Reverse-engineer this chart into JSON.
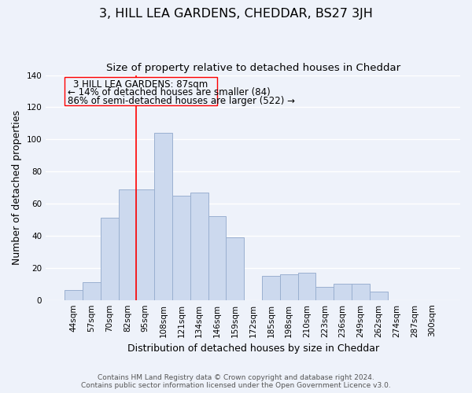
{
  "title": "3, HILL LEA GARDENS, CHEDDAR, BS27 3JH",
  "subtitle": "Size of property relative to detached houses in Cheddar",
  "xlabel": "Distribution of detached houses by size in Cheddar",
  "ylabel": "Number of detached properties",
  "bar_color": "#ccd9ee",
  "bar_edge_color": "#9ab0d0",
  "categories": [
    "44sqm",
    "57sqm",
    "70sqm",
    "82sqm",
    "95sqm",
    "108sqm",
    "121sqm",
    "134sqm",
    "146sqm",
    "159sqm",
    "172sqm",
    "185sqm",
    "198sqm",
    "210sqm",
    "223sqm",
    "236sqm",
    "249sqm",
    "262sqm",
    "274sqm",
    "287sqm",
    "300sqm"
  ],
  "values": [
    6,
    11,
    51,
    69,
    69,
    104,
    65,
    67,
    52,
    39,
    0,
    15,
    16,
    17,
    8,
    10,
    10,
    5,
    0,
    0,
    0
  ],
  "ylim": [
    0,
    140
  ],
  "yticks": [
    0,
    20,
    40,
    60,
    80,
    100,
    120,
    140
  ],
  "annotation_title": "3 HILL LEA GARDENS: 87sqm",
  "annotation_line1": "← 14% of detached houses are smaller (84)",
  "annotation_line2": "86% of semi-detached houses are larger (522) →",
  "vline_index": 3.5,
  "footer_line1": "Contains HM Land Registry data © Crown copyright and database right 2024.",
  "footer_line2": "Contains public sector information licensed under the Open Government Licence v3.0.",
  "background_color": "#eef2fa",
  "grid_color": "#ffffff",
  "title_fontsize": 11.5,
  "subtitle_fontsize": 9.5,
  "axis_label_fontsize": 9,
  "tick_fontsize": 7.5,
  "annotation_fontsize": 8.5,
  "footer_fontsize": 6.5
}
